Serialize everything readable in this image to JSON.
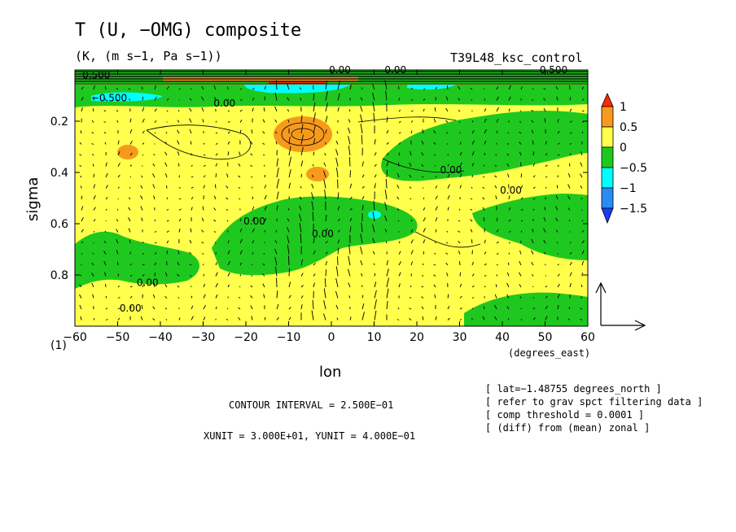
{
  "chart_data": {
    "type": "heatmap",
    "title": "T (U, −OMG) composite",
    "subtitle": "(K, (m s−1, Pa s−1))",
    "run_label": "T39L48_ksc_control",
    "xlabel": "lon",
    "xunit_label": "(degrees_east)",
    "ylabel": "sigma",
    "corner_label": "(1)",
    "xlim": [
      -60,
      60
    ],
    "ylim": [
      1.0,
      0.0
    ],
    "x_ticks": [
      -60,
      -50,
      -40,
      -30,
      -20,
      -10,
      0,
      10,
      20,
      30,
      40,
      50,
      60
    ],
    "y_ticks": [
      0.2,
      0.4,
      0.6,
      0.8
    ],
    "colorbar": {
      "levels": [
        "1",
        "0.5",
        "0",
        "−0.5",
        "−1",
        "−1.5"
      ],
      "colors": [
        "#ff2a00",
        "#f79a1c",
        "#ffff4c",
        "#1fc81f",
        "#00ffff",
        "#2a8cf0",
        "#1a3cff"
      ]
    },
    "contour_labels": [
      {
        "text": "0.500",
        "lon": -55,
        "sigma": 0.02
      },
      {
        "text": "0.00",
        "lon": 2,
        "sigma": 0.0
      },
      {
        "text": "0.00",
        "lon": 15,
        "sigma": 0.0
      },
      {
        "text": "0.500",
        "lon": 52,
        "sigma": 0.0
      },
      {
        "text": "−0.500",
        "lon": -52,
        "sigma": 0.11
      },
      {
        "text": "0.00",
        "lon": -25,
        "sigma": 0.13
      },
      {
        "text": "0.00",
        "lon": 28,
        "sigma": 0.39
      },
      {
        "text": "0.00",
        "lon": 42,
        "sigma": 0.47
      },
      {
        "text": "0.00",
        "lon": -18,
        "sigma": 0.59
      },
      {
        "text": "0.00",
        "lon": -2,
        "sigma": 0.64
      },
      {
        "text": "0.00",
        "lon": -43,
        "sigma": 0.83
      },
      {
        "text": "0.00",
        "lon": -47,
        "sigma": 0.93
      }
    ],
    "anomaly_regions": [
      {
        "level": "0.5",
        "lon": [
          -5,
          5
        ],
        "sigma": [
          0.2,
          0.32
        ]
      },
      {
        "level": "0.5",
        "lon": [
          -52,
          -44
        ],
        "sigma": [
          0.28,
          0.33
        ]
      },
      {
        "level": "0.5",
        "lon": [
          -5,
          2
        ],
        "sigma": [
          0.39,
          0.45
        ]
      },
      {
        "level": "−0.5",
        "lon": [
          -60,
          60
        ],
        "sigma": [
          0.06,
          0.13
        ]
      },
      {
        "level": "−1",
        "lon": [
          -55,
          -45
        ],
        "sigma": [
          0.08,
          0.12
        ]
      },
      {
        "level": "−0.5",
        "lon": [
          20,
          60
        ],
        "sigma": [
          0.17,
          0.42
        ]
      },
      {
        "level": "−0.5",
        "lon": [
          -30,
          15
        ],
        "sigma": [
          0.45,
          0.75
        ]
      },
      {
        "level": "−0.5",
        "lon": [
          30,
          60
        ],
        "sigma": [
          0.45,
          0.63
        ]
      },
      {
        "level": "−0.5",
        "lon": [
          -60,
          -20
        ],
        "sigma": [
          0.6,
          0.88
        ]
      },
      {
        "level": "−0.5",
        "lon": [
          30,
          60
        ],
        "sigma": [
          0.82,
          1.0
        ]
      }
    ],
    "vector_unit_arrow": {
      "x": "XUNIT",
      "y": "YUNIT"
    },
    "grid": false
  },
  "footer": {
    "contour_interval": "CONTOUR INTERVAL = 2.500E−01",
    "units": "XUNIT = 3.000E+01, YUNIT = 4.000E−01"
  },
  "notes": [
    "[ lat=−1.48755 degrees_north ]",
    "[ refer to grav spct filtering data ]",
    "[ comp threshold = 0.0001 ]",
    "[ (diff) from (mean) zonal ]"
  ]
}
